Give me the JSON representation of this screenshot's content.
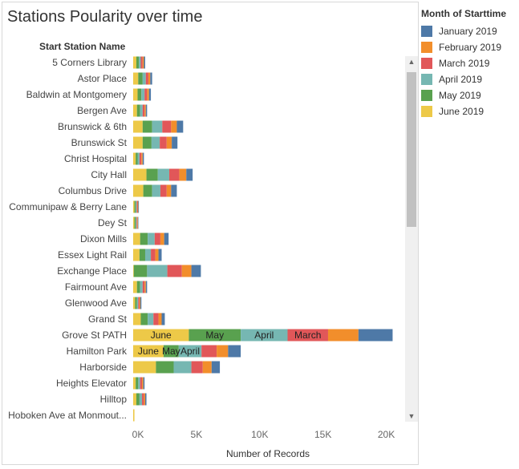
{
  "chart_data": {
    "type": "bar",
    "orientation": "horizontal",
    "stacked": true,
    "title": "Stations Poularity over time",
    "row_header": "Start Station Name",
    "xlabel": "Number of Records",
    "xlim": [
      0,
      22500
    ],
    "x_ticks": [
      0,
      5000,
      10000,
      15000,
      20000
    ],
    "x_tick_labels": [
      "0K",
      "5K",
      "10K",
      "15K",
      "20K"
    ],
    "legend_title": "Month of Starttime",
    "legend_position": "right",
    "grid": false,
    "categories": [
      "5 Corners Library",
      "Astor Place",
      "Baldwin at Montgomery",
      "Bergen Ave",
      "Brunswick & 6th",
      "Brunswick St",
      "Christ Hospital",
      "City Hall",
      "Columbus Drive",
      "Communipaw & Berry Lane",
      "Dey St",
      "Dixon Mills",
      "Essex Light Rail",
      "Exchange Place",
      "Fairmount Ave",
      "Glenwood Ave",
      "Grand St",
      "Grove St PATH",
      "Hamilton Park",
      "Harborside",
      "Heights Elevator",
      "Hilltop",
      "Hoboken Ave at Monmout..."
    ],
    "series": [
      {
        "name": "June 2019",
        "color": "#EDC948",
        "values": [
          250,
          400,
          350,
          300,
          750,
          750,
          200,
          1050,
          800,
          100,
          100,
          550,
          500,
          50,
          300,
          150,
          600,
          4400,
          2400,
          1800,
          200,
          250,
          100
        ]
      },
      {
        "name": "May 2019",
        "color": "#59A14F",
        "values": [
          200,
          350,
          300,
          250,
          750,
          700,
          150,
          900,
          700,
          100,
          100,
          600,
          450,
          1050,
          250,
          150,
          550,
          4100,
          1200,
          1400,
          200,
          250,
          0
        ]
      },
      {
        "name": "April 2019",
        "color": "#76B7B2",
        "values": [
          150,
          250,
          250,
          200,
          800,
          650,
          150,
          900,
          650,
          80,
          70,
          550,
          450,
          1600,
          200,
          100,
          450,
          3700,
          1800,
          1400,
          150,
          200,
          0
        ]
      },
      {
        "name": "March 2019",
        "color": "#E15759",
        "values": [
          150,
          200,
          200,
          150,
          700,
          550,
          150,
          800,
          500,
          70,
          50,
          450,
          350,
          1150,
          150,
          100,
          400,
          3200,
          1200,
          900,
          150,
          150,
          0
        ]
      },
      {
        "name": "February 2019",
        "color": "#F28E2B",
        "values": [
          100,
          150,
          150,
          100,
          450,
          400,
          100,
          550,
          350,
          50,
          50,
          300,
          250,
          750,
          100,
          70,
          250,
          2400,
          900,
          700,
          100,
          100,
          0
        ]
      },
      {
        "name": "January 2019",
        "color": "#4E79A7",
        "values": [
          100,
          150,
          150,
          100,
          500,
          450,
          100,
          500,
          450,
          50,
          40,
          350,
          250,
          750,
          100,
          80,
          250,
          2700,
          1000,
          650,
          100,
          100,
          0
        ]
      }
    ],
    "data_labels": [
      {
        "category": "Grove St PATH",
        "series": "June 2019",
        "text": "June"
      },
      {
        "category": "Grove St PATH",
        "series": "May 2019",
        "text": "May"
      },
      {
        "category": "Grove St PATH",
        "series": "April 2019",
        "text": "April"
      },
      {
        "category": "Grove St PATH",
        "series": "March 2019",
        "text": "March"
      },
      {
        "category": "Hamilton Park",
        "series": "June 2019",
        "text": "June"
      },
      {
        "category": "Hamilton Park",
        "series": "May 2019",
        "text": "May"
      },
      {
        "category": "Hamilton Park",
        "series": "April 2019",
        "text": "April"
      }
    ],
    "legend_order": [
      "January 2019",
      "February 2019",
      "March 2019",
      "April 2019",
      "May 2019",
      "June 2019"
    ]
  },
  "scrollbar": {
    "up_icon": "chevron-up-icon",
    "down_icon": "chevron-down-icon"
  }
}
